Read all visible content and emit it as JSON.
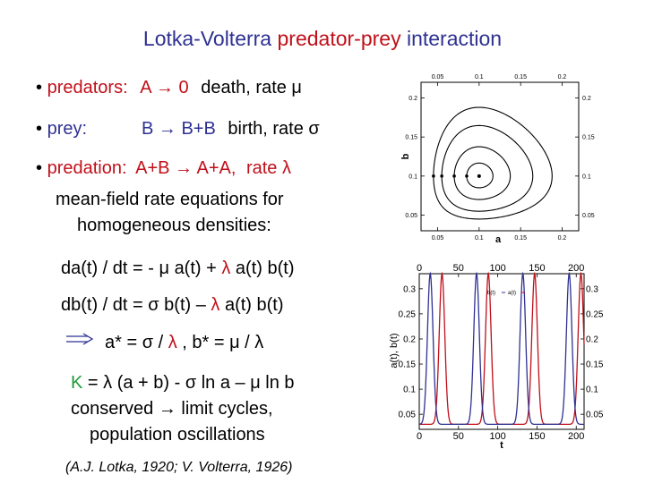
{
  "title": {
    "part1": "Lotka-Volterra ",
    "part2": "predator-prey",
    "part3": " interaction"
  },
  "bullets": {
    "predators": {
      "dot": "•",
      "label": "predators:",
      "reaction": "A → 0",
      "text": "death, rate μ"
    },
    "prey": {
      "dot": "•",
      "label": "prey:",
      "reaction": "B → B+B",
      "text": "birth, rate σ"
    },
    "predation": {
      "dot": "•",
      "label": "predation:",
      "reaction": "A+B → A+A,",
      "text": "rate λ"
    }
  },
  "meanfield": {
    "line1": "mean-field rate equations for",
    "line2": "homogeneous densities:"
  },
  "eq1": {
    "pre": "da(t) / dt = - μ a(t) + ",
    "lambda": "λ",
    "post": " a(t) b(t)"
  },
  "eq2": {
    "pre": "db(t) / dt =  σ b(t) – ",
    "lambda": "λ",
    "post": " a(t) b(t)"
  },
  "fixed": {
    "pre": "a* = σ / ",
    "lambda": "λ",
    "post": " ,  b* = μ / λ"
  },
  "conserved": {
    "K": "K",
    "line1": " = λ (a + b) - σ ln a – μ ln b",
    "line2": "conserved → limit cycles,",
    "line3": "population oscillations"
  },
  "citation": "(A.J. Lotka, 1920; V. Volterra, 1926)",
  "phase_plot": {
    "xlabel": "a",
    "ylabel": "b",
    "x_ticks": [
      "0.05",
      "0.1",
      "0.15",
      "0.2"
    ],
    "y_ticks": [
      "0.2",
      "0.15",
      "0.1",
      "0.05"
    ]
  },
  "time_plot": {
    "xlabel": "t",
    "ylabel": "a(t), b(t)",
    "x_ticks": [
      "0",
      "50",
      "100",
      "150",
      "200"
    ],
    "y_ticks": [
      "0.3",
      "0.25",
      "0.2",
      "0.15",
      "0.1",
      "0.05"
    ],
    "legend_b": "b(t)",
    "legend_a": "a(t)"
  },
  "colors": {
    "blue": "#2e3192",
    "red": "#c0101a",
    "green": "#1f9a3a"
  },
  "chart_data": [
    {
      "type": "line",
      "title": "",
      "xlabel": "a",
      "ylabel": "b",
      "xlim": [
        0.03,
        0.22
      ],
      "ylim": [
        0.03,
        0.22
      ],
      "x_ticks": [
        0.05,
        0.1,
        0.15,
        0.2
      ],
      "y_ticks": [
        0.05,
        0.1,
        0.15,
        0.2
      ],
      "fixed_point": {
        "a": 0.1,
        "b": 0.1
      },
      "series": [
        {
          "name": "orbit1",
          "start_a": 0.085,
          "start_b": 0.1
        },
        {
          "name": "orbit2",
          "start_a": 0.07,
          "start_b": 0.1
        },
        {
          "name": "orbit3",
          "start_a": 0.055,
          "start_b": 0.1
        },
        {
          "name": "orbit4",
          "start_a": 0.045,
          "start_b": 0.1
        }
      ],
      "marker_points": [
        {
          "a": 0.045,
          "b": 0.1
        },
        {
          "a": 0.055,
          "b": 0.1
        },
        {
          "a": 0.07,
          "b": 0.1
        },
        {
          "a": 0.085,
          "b": 0.1
        }
      ],
      "grid": false
    },
    {
      "type": "line",
      "title": "",
      "xlabel": "t",
      "ylabel": "a(t), b(t)",
      "xlim": [
        0,
        210
      ],
      "ylim": [
        0.02,
        0.33
      ],
      "x_ticks": [
        0,
        50,
        100,
        150,
        200
      ],
      "y_ticks": [
        0.05,
        0.1,
        0.15,
        0.2,
        0.25,
        0.3
      ],
      "series": [
        {
          "name": "a(t)",
          "color": "#c0101a",
          "period": 59,
          "min": 0.03,
          "max": 0.33,
          "first_peak_t": 29
        },
        {
          "name": "b(t)",
          "color": "#2e3192",
          "period": 59,
          "min": 0.03,
          "max": 0.33,
          "first_peak_t": 14
        }
      ],
      "legend": [
        "b(t)",
        "a(t)"
      ],
      "grid": false
    }
  ]
}
